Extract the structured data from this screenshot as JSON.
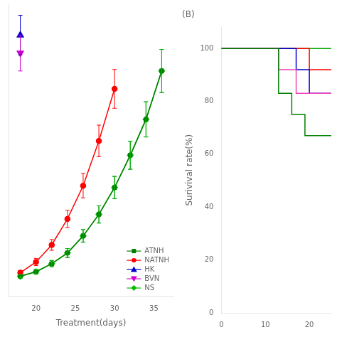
{
  "chart_data": [
    {
      "type": "line",
      "xlabel": "Treatment(days)",
      "xlim": [
        16.5,
        37.5
      ],
      "xticks": [
        20,
        25,
        30,
        35
      ],
      "ylim": [
        -80,
        1550
      ],
      "tick_labels": "x",
      "grid": false,
      "legend": "lower right",
      "series": [
        {
          "name": "ATNH",
          "color": "#008000",
          "marker": "square",
          "x": [
            18,
            20,
            22,
            24,
            26,
            28,
            30,
            32,
            34,
            36
          ],
          "values": [
            35,
            60,
            105,
            165,
            260,
            380,
            530,
            710,
            910,
            1180
          ],
          "yerr": [
            8,
            12,
            18,
            25,
            35,
            48,
            62,
            78,
            98,
            120
          ]
        },
        {
          "name": "NATNH",
          "color": "#ff0000",
          "marker": "circle",
          "x": [
            18,
            20,
            22,
            24,
            26,
            28,
            30
          ],
          "values": [
            55,
            115,
            210,
            355,
            540,
            790,
            1080
          ],
          "yerr": [
            12,
            20,
            30,
            48,
            68,
            88,
            108
          ]
        },
        {
          "name": "HK",
          "color": "#0000cc",
          "marker": "triangle-up",
          "x": [
            18
          ],
          "values": [
            1380
          ],
          "yerr": [
            110
          ]
        },
        {
          "name": "BVN",
          "color": "#cc00cc",
          "marker": "triangle-down",
          "x": [
            18
          ],
          "values": [
            1280
          ],
          "yerr": [
            100
          ]
        },
        {
          "name": "NS",
          "color": "#00bb00",
          "marker": "diamond",
          "x": [
            18,
            20,
            22,
            24,
            26,
            28,
            30,
            32,
            34,
            36
          ],
          "values": [
            35,
            60,
            105,
            165,
            260,
            380,
            530,
            710,
            910,
            1180
          ],
          "yerr": [
            8,
            12,
            18,
            25,
            35,
            48,
            62,
            78,
            98,
            120
          ]
        }
      ]
    },
    {
      "type": "line",
      "title": "(B)",
      "ylabel": "Surivival rate(%)",
      "xlim": [
        0,
        25
      ],
      "xticks": [
        0,
        10,
        20
      ],
      "ylim": [
        0,
        108
      ],
      "yticks": [
        0,
        20,
        40,
        60,
        80,
        100
      ],
      "grid": false,
      "series": [
        {
          "color": "#008000",
          "x": [
            0,
            13,
            13,
            16,
            16,
            19,
            19,
            25
          ],
          "values": [
            100,
            100,
            83,
            83,
            75,
            75,
            67,
            67
          ]
        },
        {
          "color": "#ee44bb",
          "x": [
            0,
            13,
            13,
            17,
            17,
            25
          ],
          "values": [
            100,
            100,
            92,
            92,
            83,
            83
          ]
        },
        {
          "color": "#0000cc",
          "x": [
            0,
            17,
            17,
            20,
            20,
            25
          ],
          "values": [
            100,
            100,
            92,
            92,
            83,
            83
          ]
        },
        {
          "color": "#ff0000",
          "x": [
            0,
            20,
            20,
            25
          ],
          "values": [
            100,
            100,
            92,
            92
          ]
        },
        {
          "color": "#00aa00",
          "x": [
            0,
            25
          ],
          "values": [
            100,
            100
          ]
        }
      ]
    }
  ]
}
